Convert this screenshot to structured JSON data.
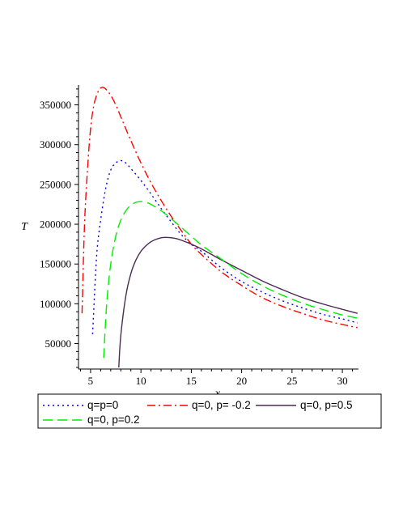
{
  "chart_data": {
    "type": "line",
    "title": "",
    "xlabel": "x",
    "ylabel": "T",
    "xlim": [
      3.8,
      31.6
    ],
    "ylim": [
      18000,
      375000
    ],
    "x_ticks": [
      5,
      10,
      15,
      20,
      25,
      30
    ],
    "y_ticks": [
      50000,
      100000,
      150000,
      200000,
      250000,
      300000,
      350000
    ],
    "x_tick_labels": [
      "5",
      "10",
      "15",
      "20",
      "25",
      "30"
    ],
    "y_tick_labels": [
      "50000",
      "100000",
      "150000",
      "200000",
      "250000",
      "300000",
      "350000"
    ],
    "grid": false,
    "legend_position": "bottom",
    "series": [
      {
        "name": "q=p=0",
        "color": "#0000ff",
        "dash": "dotted",
        "x": [
          5.2,
          5.6,
          6.0,
          6.5,
          7.0,
          7.5,
          8.0,
          8.5,
          9.0,
          10,
          11,
          12,
          13,
          14,
          15,
          16,
          18,
          20,
          22,
          24,
          26,
          28,
          30,
          31.5
        ],
        "y": [
          62000,
          160000,
          205000,
          245000,
          268000,
          277000,
          280000,
          277000,
          270000,
          255000,
          238000,
          220000,
          203000,
          187000,
          175000,
          166000,
          145000,
          128000,
          115000,
          104000,
          95000,
          87000,
          81000,
          76000
        ]
      },
      {
        "name": "q=0, p= -0.2",
        "color": "#ff0000",
        "dash": "dashdot",
        "x": [
          4.15,
          4.4,
          4.7,
          5.0,
          5.3,
          5.6,
          5.9,
          6.2,
          6.5,
          7.0,
          7.5,
          8.0,
          9.0,
          10,
          11,
          12,
          13,
          14,
          15,
          16,
          18,
          20,
          22,
          24,
          26,
          28,
          30,
          31.5
        ],
        "y": [
          88000,
          200000,
          270000,
          320000,
          348000,
          362000,
          370000,
          372000,
          370000,
          362000,
          350000,
          335000,
          305000,
          277000,
          252000,
          230000,
          210000,
          192000,
          175000,
          162000,
          140000,
          123000,
          108000,
          97000,
          88000,
          80000,
          74000,
          70000
        ]
      },
      {
        "name": "q=0, p=0.5",
        "color": "#4b2a55",
        "dash": "solid",
        "x": [
          7.8,
          8.0,
          8.5,
          9.0,
          9.5,
          10,
          10.5,
          11,
          11.5,
          12,
          12.5,
          13,
          13.5,
          14,
          15,
          16,
          17,
          18,
          20,
          22,
          24,
          26,
          28,
          30,
          31.5
        ],
        "y": [
          20000,
          60000,
          110000,
          138000,
          155000,
          166000,
          173000,
          178000,
          181000,
          183000,
          183500,
          183000,
          182000,
          180000,
          175000,
          169000,
          162000,
          155000,
          142000,
          129000,
          118000,
          108000,
          100000,
          93000,
          88000
        ]
      },
      {
        "name": "q=0, p=0.2",
        "color": "#00ee00",
        "dash": "dashed",
        "x": [
          6.3,
          6.6,
          7.0,
          7.5,
          8.0,
          8.5,
          9.0,
          9.5,
          10,
          10.5,
          11,
          12,
          13,
          14,
          15,
          16,
          18,
          20,
          22,
          24,
          26,
          28,
          30,
          31.5
        ],
        "y": [
          32000,
          100000,
          150000,
          185000,
          205000,
          217000,
          224000,
          227500,
          228500,
          227500,
          225000,
          217000,
          207000,
          196000,
          185000,
          174000,
          156000,
          138000,
          123000,
          111000,
          101000,
          93000,
          86000,
          82000
        ]
      }
    ],
    "legend": [
      {
        "label": "q=p=0",
        "color": "#0000ff",
        "dash": "dotted"
      },
      {
        "label": "q=0, p= -0.2",
        "color": "#ff0000",
        "dash": "dashdot"
      },
      {
        "label": "q=0, p=0.5",
        "color": "#4b2a55",
        "dash": "solid"
      },
      {
        "label": "q=0, p=0.2",
        "color": "#00ee00",
        "dash": "dashed"
      }
    ]
  }
}
